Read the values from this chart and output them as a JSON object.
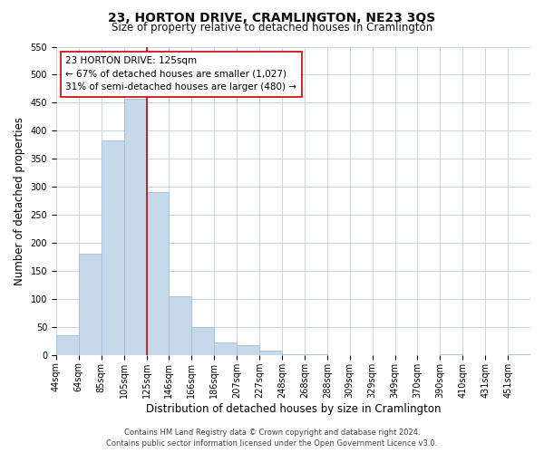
{
  "title": "23, HORTON DRIVE, CRAMLINGTON, NE23 3QS",
  "subtitle": "Size of property relative to detached houses in Cramlington",
  "xlabel": "Distribution of detached houses by size in Cramlington",
  "ylabel": "Number of detached properties",
  "bar_labels": [
    "44sqm",
    "64sqm",
    "85sqm",
    "105sqm",
    "125sqm",
    "146sqm",
    "166sqm",
    "186sqm",
    "207sqm",
    "227sqm",
    "248sqm",
    "268sqm",
    "288sqm",
    "309sqm",
    "329sqm",
    "349sqm",
    "370sqm",
    "390sqm",
    "410sqm",
    "431sqm",
    "451sqm"
  ],
  "bar_values": [
    35,
    181,
    383,
    457,
    290,
    105,
    49,
    22,
    17,
    8,
    2,
    1,
    0,
    0,
    0,
    0,
    0,
    1,
    0,
    0,
    1
  ],
  "bar_color": "#c5d9ea",
  "bar_edge_color": "#a0bcd4",
  "vline_color": "#cc0000",
  "annotation_title": "23 HORTON DRIVE: 125sqm",
  "annotation_line1": "← 67% of detached houses are smaller (1,027)",
  "annotation_line2": "31% of semi-detached houses are larger (480) →",
  "annotation_box_color": "#ffffff",
  "annotation_box_edge": "#cc0000",
  "ylim": [
    0,
    550
  ],
  "yticks": [
    0,
    50,
    100,
    150,
    200,
    250,
    300,
    350,
    400,
    450,
    500,
    550
  ],
  "footer_line1": "Contains HM Land Registry data © Crown copyright and database right 2024.",
  "footer_line2": "Contains public sector information licensed under the Open Government Licence v3.0.",
  "bg_color": "#ffffff",
  "grid_color": "#c5d5e5",
  "title_fontsize": 10,
  "subtitle_fontsize": 8.5,
  "axis_label_fontsize": 8.5,
  "tick_fontsize": 7,
  "annotation_fontsize": 7.5,
  "footer_fontsize": 6
}
